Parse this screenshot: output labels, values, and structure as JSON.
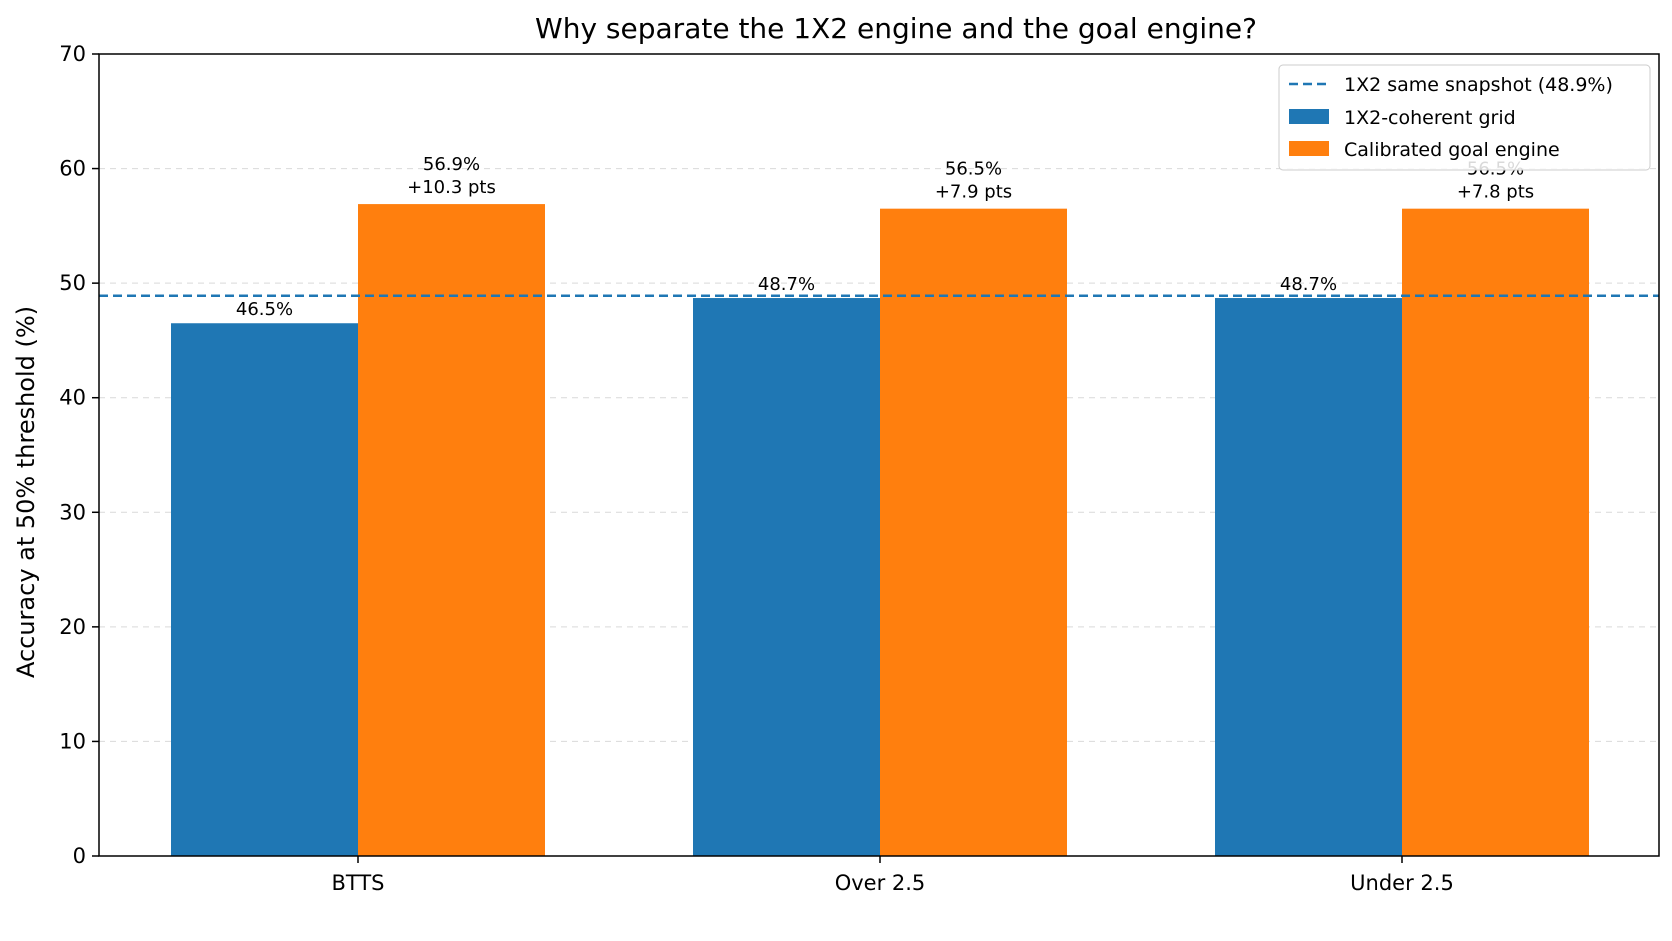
{
  "chart_data": {
    "type": "bar",
    "title": "Why separate the 1X2 engine and the goal engine?",
    "xlabel": "",
    "ylabel": "Accuracy at 50% threshold (%)",
    "ylim": [
      0,
      70
    ],
    "yticks": [
      0,
      10,
      20,
      30,
      40,
      50,
      60,
      70
    ],
    "grid": "y-dashed",
    "legend_placement": "top-right",
    "categories": [
      "BTTS",
      "Over 2.5",
      "Under 2.5"
    ],
    "series": [
      {
        "name": "1X2-coherent grid",
        "color": "#1f77b4",
        "values": [
          46.5,
          48.7,
          48.7
        ],
        "labels": [
          "46.5%",
          "48.7%",
          "48.7%"
        ]
      },
      {
        "name": "Calibrated goal engine",
        "color": "#ff7f0e",
        "values": [
          56.9,
          56.5,
          56.5
        ],
        "labels": [
          "56.9%",
          "56.5%",
          "56.5%"
        ],
        "deltas": [
          "+10.3 pts",
          "+7.9 pts",
          "+7.8 pts"
        ]
      }
    ],
    "reference_line": {
      "name": "1X2 same snapshot (48.9%)",
      "value": 48.9,
      "style": "dashed",
      "color": "#1f77b4"
    }
  }
}
